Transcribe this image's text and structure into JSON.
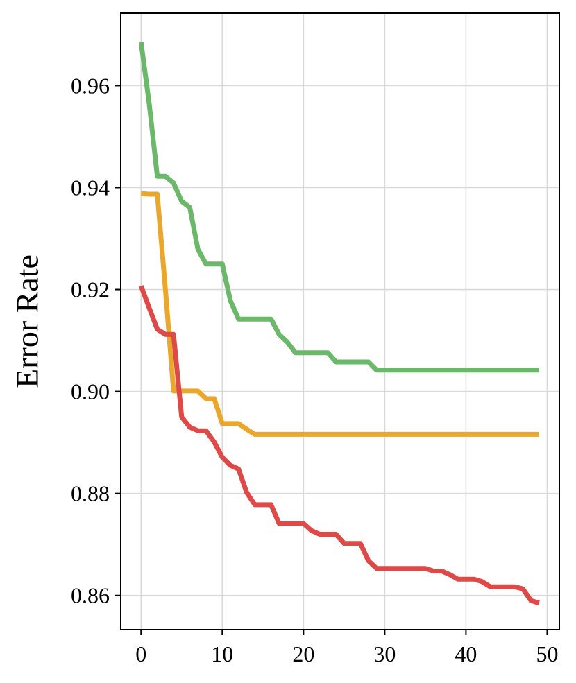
{
  "chart_data": {
    "type": "line",
    "title": "",
    "xlabel": "",
    "ylabel": "Error Rate",
    "xlim": [
      -2.5,
      51.5
    ],
    "ylim": [
      0.8533,
      0.9742
    ],
    "xticks": [
      0,
      10,
      20,
      30,
      40,
      50
    ],
    "xtick_labels": [
      "0",
      "10",
      "20",
      "30",
      "40",
      "50"
    ],
    "yticks": [
      0.86,
      0.88,
      0.9,
      0.92,
      0.94,
      0.96
    ],
    "ytick_labels": [
      "0.86",
      "0.88",
      "0.90",
      "0.92",
      "0.94",
      "0.96"
    ],
    "grid": true,
    "legend": null,
    "series": [
      {
        "color": "#6bb86a",
        "x": [
          0,
          1,
          2,
          3,
          4,
          5,
          6,
          7,
          8,
          9,
          10,
          11,
          12,
          13,
          14,
          15,
          16,
          17,
          18,
          19,
          20,
          21,
          22,
          23,
          24,
          25,
          26,
          27,
          28,
          29,
          30,
          31,
          32,
          33,
          34,
          35,
          36,
          37,
          38,
          39,
          40,
          41,
          42,
          43,
          44,
          45,
          46,
          47,
          48,
          49
        ],
        "values": [
          0.9685,
          0.9565,
          0.9422,
          0.9422,
          0.9409,
          0.9373,
          0.9361,
          0.9279,
          0.925,
          0.925,
          0.925,
          0.9178,
          0.9142,
          0.9142,
          0.9142,
          0.9142,
          0.9142,
          0.9112,
          0.9097,
          0.9076,
          0.9076,
          0.9076,
          0.9076,
          0.9076,
          0.9058,
          0.9058,
          0.9058,
          0.9058,
          0.9058,
          0.9042,
          0.9042,
          0.9042,
          0.9042,
          0.9042,
          0.9042,
          0.9042,
          0.9042,
          0.9042,
          0.9042,
          0.9042,
          0.9042,
          0.9042,
          0.9042,
          0.9042,
          0.9042,
          0.9042,
          0.9042,
          0.9042,
          0.9042,
          0.9042
        ]
      },
      {
        "color": "#e9a82d",
        "x": [
          0,
          1,
          2,
          3,
          4,
          5,
          6,
          7,
          8,
          9,
          10,
          11,
          12,
          13,
          14,
          15,
          16,
          17,
          18,
          19,
          20,
          21,
          22,
          23,
          24,
          25,
          26,
          27,
          28,
          29,
          30,
          31,
          32,
          33,
          34,
          35,
          36,
          37,
          38,
          39,
          40,
          41,
          42,
          43,
          44,
          45,
          46,
          47,
          48,
          49
        ],
        "values": [
          0.9388,
          0.9387,
          0.9387,
          0.92,
          0.9001,
          0.9001,
          0.9001,
          0.9001,
          0.8986,
          0.8986,
          0.8937,
          0.8937,
          0.8937,
          0.8926,
          0.8916,
          0.8916,
          0.8916,
          0.8916,
          0.8916,
          0.8916,
          0.8916,
          0.8916,
          0.8916,
          0.8916,
          0.8916,
          0.8916,
          0.8916,
          0.8916,
          0.8916,
          0.8916,
          0.8916,
          0.8916,
          0.8916,
          0.8916,
          0.8916,
          0.8916,
          0.8916,
          0.8916,
          0.8916,
          0.8916,
          0.8916,
          0.8916,
          0.8916,
          0.8916,
          0.8916,
          0.8916,
          0.8916,
          0.8916,
          0.8916,
          0.8916
        ]
      },
      {
        "color": "#de4a48",
        "x": [
          0,
          1,
          2,
          3,
          4,
          5,
          6,
          7,
          8,
          9,
          10,
          11,
          12,
          13,
          14,
          15,
          16,
          17,
          18,
          19,
          20,
          21,
          22,
          23,
          24,
          25,
          26,
          27,
          28,
          29,
          30,
          31,
          32,
          33,
          34,
          35,
          36,
          37,
          38,
          39,
          40,
          41,
          42,
          43,
          44,
          45,
          46,
          47,
          48,
          49
        ],
        "values": [
          0.9207,
          0.9164,
          0.9122,
          0.9112,
          0.9112,
          0.895,
          0.893,
          0.8923,
          0.8923,
          0.8901,
          0.8871,
          0.8855,
          0.8848,
          0.8802,
          0.8778,
          0.8778,
          0.8778,
          0.8741,
          0.8741,
          0.8741,
          0.8741,
          0.8727,
          0.872,
          0.872,
          0.872,
          0.8702,
          0.8702,
          0.8702,
          0.8668,
          0.8653,
          0.8653,
          0.8653,
          0.8653,
          0.8653,
          0.8653,
          0.8653,
          0.8648,
          0.8648,
          0.8641,
          0.8632,
          0.8632,
          0.8632,
          0.8627,
          0.8617,
          0.8617,
          0.8617,
          0.8617,
          0.8613,
          0.859,
          0.8585
        ]
      }
    ]
  }
}
